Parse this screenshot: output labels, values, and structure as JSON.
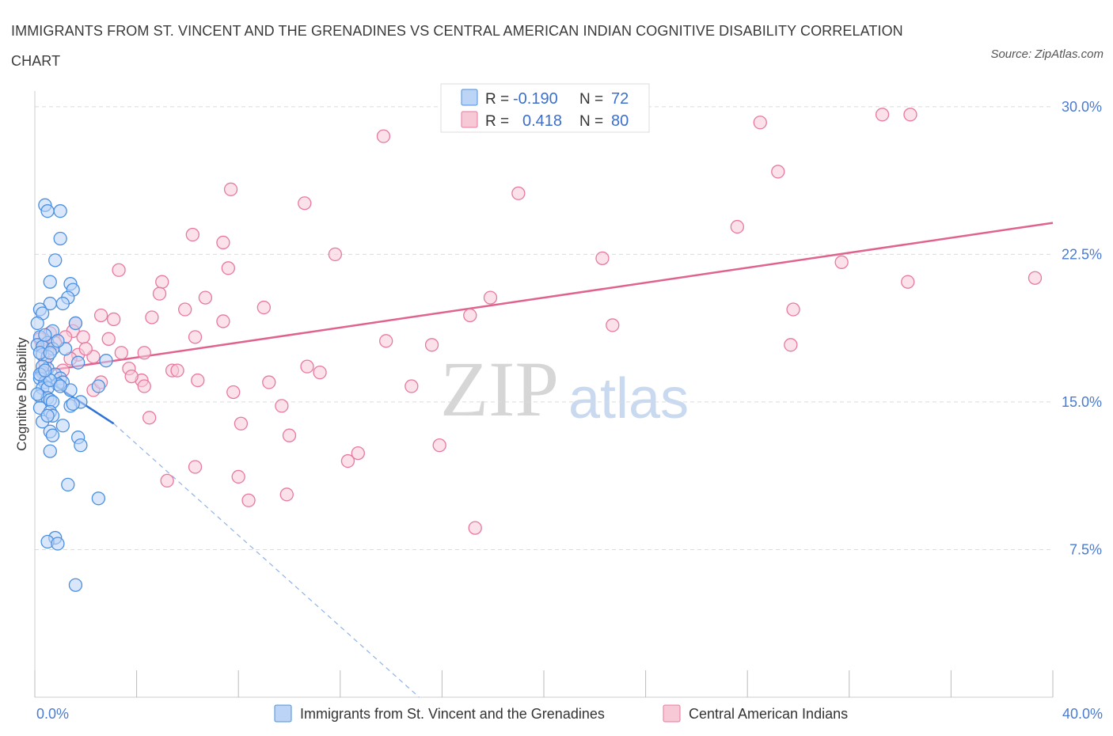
{
  "title": "IMMIGRANTS FROM ST. VINCENT AND THE GRENADINES VS CENTRAL AMERICAN INDIAN COGNITIVE DISABILITY CORRELATION CHART",
  "source": "Source: ZipAtlas.com",
  "watermark": {
    "zip": "ZIP",
    "atlas": "atlas"
  },
  "colors": {
    "blue": "#4a90e2",
    "pink": "#e8799e",
    "blue_fill": "#bcd4f6",
    "pink_fill": "#f7c9d7",
    "blue_line": "#2f72d6",
    "pink_line": "#e0628e"
  },
  "legend": {
    "r_label": "R =",
    "n_label": "N =",
    "blue_r": "-0.190",
    "blue_n": "72",
    "pink_r": "0.418",
    "pink_n": "80"
  },
  "chart_data": {
    "type": "scatter",
    "title": "IMMIGRANTS FROM ST. VINCENT AND THE GRENADINES VS CENTRAL AMERICAN INDIAN COGNITIVE DISABILITY CORRELATION CHART",
    "ylabel": "Cognitive Disability",
    "xlabel": "",
    "xlim": [
      0,
      40
    ],
    "ylim": [
      0,
      30
    ],
    "x_tick_labels": [
      "0.0%",
      "40.0%"
    ],
    "y_tick_labels": [
      "30.0%",
      "22.5%",
      "15.0%",
      "7.5%"
    ],
    "y_ticks": [
      30,
      22.5,
      15,
      7.5
    ],
    "grid": "horizontal dashed",
    "legend_position": "top-center",
    "series": [
      {
        "name": "Immigrants from St. Vincent and the Grenadines",
        "color": "#4a90e2",
        "r": -0.19,
        "n": 72,
        "trend": {
          "x": [
            0,
            3.1
          ],
          "y": [
            16.5,
            13.9
          ],
          "dashed_extension": {
            "x": [
              3.1,
              15.1
            ],
            "y": [
              13.9,
              0
            ]
          }
        },
        "points": [
          [
            0.4,
            25.0
          ],
          [
            0.5,
            24.7
          ],
          [
            1.0,
            24.7
          ],
          [
            1.0,
            23.3
          ],
          [
            0.8,
            22.2
          ],
          [
            0.6,
            21.1
          ],
          [
            1.4,
            21.0
          ],
          [
            1.5,
            20.7
          ],
          [
            1.3,
            20.3
          ],
          [
            0.6,
            20.0
          ],
          [
            1.1,
            20.0
          ],
          [
            0.2,
            19.7
          ],
          [
            0.3,
            19.5
          ],
          [
            0.1,
            19.0
          ],
          [
            1.6,
            19.0
          ],
          [
            0.7,
            18.6
          ],
          [
            0.2,
            18.3
          ],
          [
            0.5,
            18.0
          ],
          [
            0.1,
            17.9
          ],
          [
            0.3,
            17.8
          ],
          [
            0.7,
            17.7
          ],
          [
            1.2,
            17.7
          ],
          [
            0.3,
            17.4
          ],
          [
            0.5,
            17.3
          ],
          [
            2.8,
            17.1
          ],
          [
            1.7,
            17.0
          ],
          [
            0.5,
            16.7
          ],
          [
            0.3,
            16.5
          ],
          [
            0.8,
            16.4
          ],
          [
            0.2,
            16.2
          ],
          [
            1.0,
            16.2
          ],
          [
            1.1,
            16.0
          ],
          [
            0.4,
            16.0
          ],
          [
            0.9,
            15.9
          ],
          [
            2.5,
            15.8
          ],
          [
            0.3,
            15.7
          ],
          [
            0.5,
            15.7
          ],
          [
            1.4,
            15.6
          ],
          [
            0.2,
            15.3
          ],
          [
            0.5,
            15.2
          ],
          [
            0.6,
            15.1
          ],
          [
            0.7,
            15.0
          ],
          [
            1.8,
            15.0
          ],
          [
            1.4,
            14.8
          ],
          [
            1.5,
            14.9
          ],
          [
            0.2,
            14.7
          ],
          [
            0.6,
            14.5
          ],
          [
            0.7,
            14.3
          ],
          [
            0.3,
            14.0
          ],
          [
            1.1,
            13.8
          ],
          [
            0.6,
            13.5
          ],
          [
            0.7,
            13.3
          ],
          [
            1.7,
            13.2
          ],
          [
            1.8,
            12.8
          ],
          [
            0.6,
            12.5
          ],
          [
            1.3,
            10.8
          ],
          [
            2.5,
            10.1
          ],
          [
            0.8,
            8.1
          ],
          [
            0.5,
            7.9
          ],
          [
            0.9,
            7.8
          ],
          [
            1.6,
            5.7
          ],
          [
            0.2,
            17.5
          ],
          [
            0.4,
            18.4
          ],
          [
            0.6,
            16.1
          ],
          [
            0.9,
            18.1
          ],
          [
            0.3,
            16.8
          ],
          [
            0.1,
            15.4
          ],
          [
            0.2,
            16.4
          ],
          [
            0.4,
            16.6
          ],
          [
            0.6,
            17.5
          ],
          [
            1.0,
            15.8
          ],
          [
            0.5,
            14.3
          ]
        ]
      },
      {
        "name": "Central American Indians",
        "color": "#e8799e",
        "r": 0.418,
        "n": 80,
        "trend": {
          "x": [
            0,
            40
          ],
          "y": [
            16.5,
            24.1
          ]
        },
        "points": [
          [
            33.3,
            29.6
          ],
          [
            34.4,
            29.6
          ],
          [
            28.5,
            29.2
          ],
          [
            13.7,
            28.5
          ],
          [
            29.2,
            26.7
          ],
          [
            7.7,
            25.8
          ],
          [
            19.0,
            25.6
          ],
          [
            10.6,
            25.1
          ],
          [
            27.6,
            23.9
          ],
          [
            6.2,
            23.5
          ],
          [
            7.4,
            23.1
          ],
          [
            11.8,
            22.5
          ],
          [
            22.3,
            22.3
          ],
          [
            31.7,
            22.1
          ],
          [
            3.3,
            21.7
          ],
          [
            7.6,
            21.8
          ],
          [
            5.0,
            21.1
          ],
          [
            34.3,
            21.1
          ],
          [
            39.3,
            21.3
          ],
          [
            4.9,
            20.5
          ],
          [
            6.7,
            20.3
          ],
          [
            17.9,
            20.3
          ],
          [
            9.0,
            19.8
          ],
          [
            5.9,
            19.7
          ],
          [
            29.8,
            19.7
          ],
          [
            2.6,
            19.4
          ],
          [
            17.1,
            19.4
          ],
          [
            3.1,
            19.2
          ],
          [
            4.6,
            19.3
          ],
          [
            7.4,
            19.1
          ],
          [
            1.6,
            19.0
          ],
          [
            22.7,
            18.9
          ],
          [
            1.5,
            18.6
          ],
          [
            0.6,
            18.5
          ],
          [
            1.2,
            18.3
          ],
          [
            1.9,
            18.3
          ],
          [
            2.9,
            18.2
          ],
          [
            6.3,
            18.3
          ],
          [
            13.8,
            18.1
          ],
          [
            15.6,
            17.9
          ],
          [
            29.7,
            17.9
          ],
          [
            0.3,
            17.9
          ],
          [
            0.5,
            17.6
          ],
          [
            1.7,
            17.4
          ],
          [
            2.3,
            17.3
          ],
          [
            3.4,
            17.5
          ],
          [
            4.3,
            17.5
          ],
          [
            10.7,
            16.8
          ],
          [
            1.1,
            16.6
          ],
          [
            3.7,
            16.7
          ],
          [
            5.4,
            16.6
          ],
          [
            5.6,
            16.6
          ],
          [
            11.2,
            16.5
          ],
          [
            4.2,
            16.1
          ],
          [
            6.4,
            16.1
          ],
          [
            9.2,
            16.0
          ],
          [
            4.3,
            15.8
          ],
          [
            14.8,
            15.8
          ],
          [
            2.3,
            15.6
          ],
          [
            7.8,
            15.5
          ],
          [
            9.7,
            14.8
          ],
          [
            4.5,
            14.2
          ],
          [
            8.1,
            13.9
          ],
          [
            10.0,
            13.3
          ],
          [
            15.9,
            12.8
          ],
          [
            12.7,
            12.4
          ],
          [
            12.3,
            12.0
          ],
          [
            6.3,
            11.7
          ],
          [
            8.0,
            11.2
          ],
          [
            5.2,
            11.0
          ],
          [
            9.9,
            10.3
          ],
          [
            8.4,
            10.0
          ],
          [
            17.3,
            8.6
          ],
          [
            0.2,
            18.2
          ],
          [
            0.8,
            18.0
          ],
          [
            2.0,
            17.7
          ],
          [
            3.8,
            16.3
          ],
          [
            1.4,
            17.2
          ],
          [
            0.4,
            17.0
          ],
          [
            2.6,
            16.0
          ]
        ]
      }
    ]
  }
}
